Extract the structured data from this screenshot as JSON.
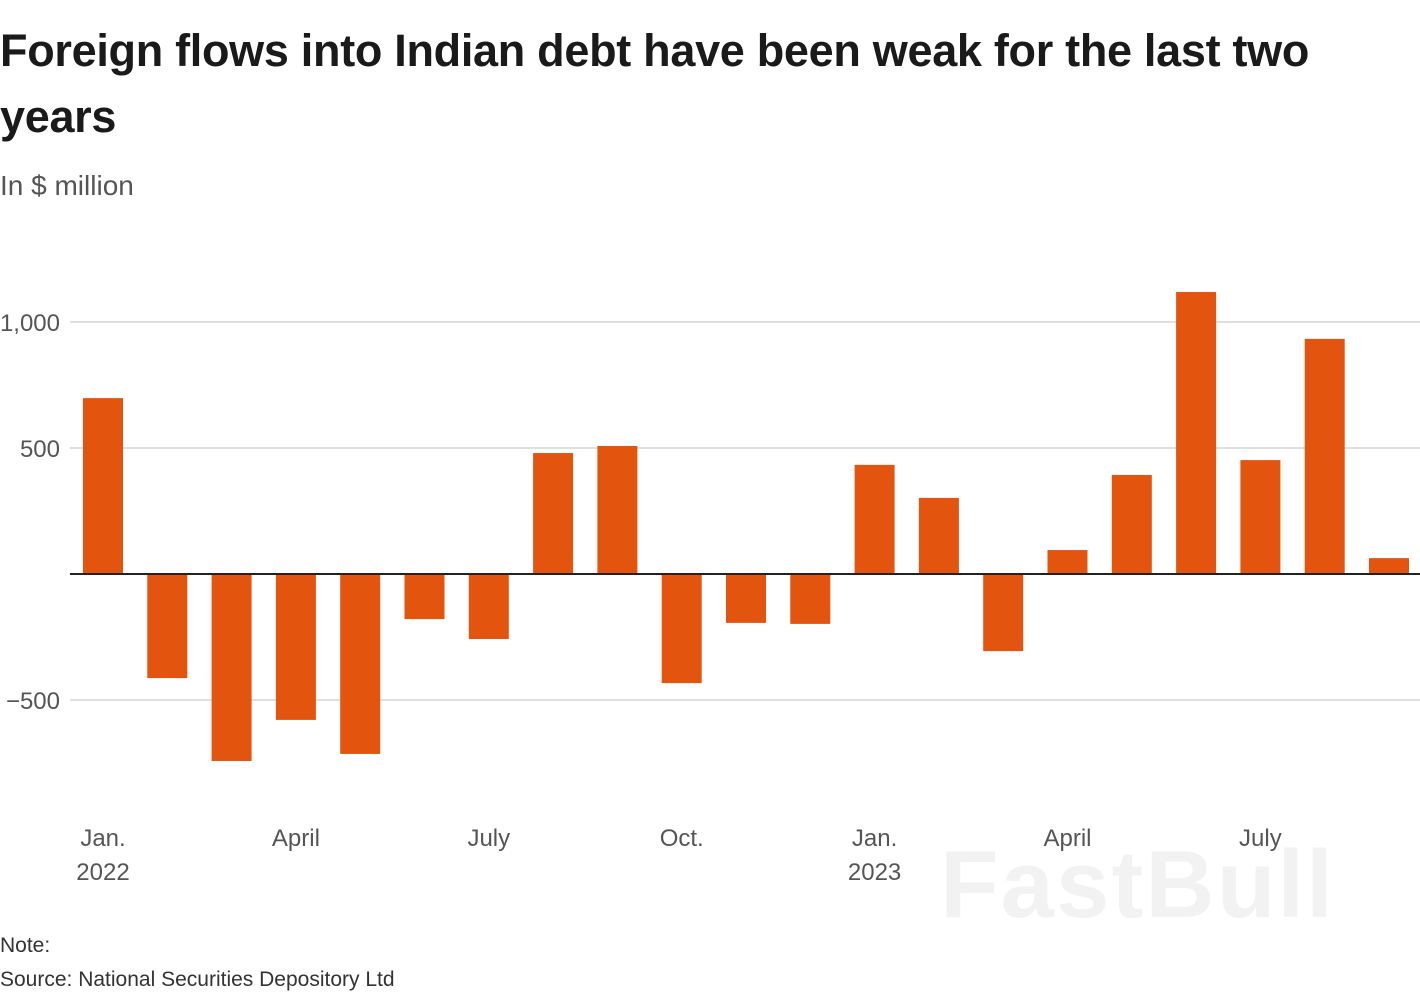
{
  "title": "Foreign flows into Indian debt have been weak for the last two years",
  "subtitle": "In $ million",
  "note": "Note:",
  "source": "Source: National Securities Depository Ltd",
  "watermark": "FastBull",
  "colors": {
    "bar": "#e3540f",
    "grid": "#cccccc",
    "axis": "#222222"
  },
  "chart_data": {
    "type": "bar",
    "title": "Foreign flows into Indian debt have been weak for the last two years",
    "ylabel": "In $ million",
    "categories": [
      "2022-01",
      "2022-02",
      "2022-03",
      "2022-04",
      "2022-05",
      "2022-06",
      "2022-07",
      "2022-08",
      "2022-09",
      "2022-10",
      "2022-11",
      "2022-12",
      "2023-01",
      "2023-02",
      "2023-03",
      "2023-04",
      "2023-05",
      "2023-06",
      "2023-07",
      "2023-08",
      "2023-09"
    ],
    "values": [
      698,
      -413,
      -742,
      -579,
      -714,
      -179,
      -258,
      480,
      508,
      -433,
      -194,
      -198,
      433,
      302,
      -306,
      95,
      393,
      1119,
      452,
      933,
      63
    ],
    "ylim": [
      -850,
      1150
    ],
    "yticks": [
      {
        "value": 1000,
        "label": "1,000"
      },
      {
        "value": 500,
        "label": "500"
      },
      {
        "value": -500,
        "label": "−500"
      }
    ],
    "xticks": [
      {
        "index": 0,
        "label": "Jan.",
        "sublabel": "2022"
      },
      {
        "index": 3,
        "label": "April",
        "sublabel": ""
      },
      {
        "index": 6,
        "label": "July",
        "sublabel": ""
      },
      {
        "index": 9,
        "label": "Oct.",
        "sublabel": ""
      },
      {
        "index": 12,
        "label": "Jan.",
        "sublabel": "2023"
      },
      {
        "index": 15,
        "label": "April",
        "sublabel": ""
      },
      {
        "index": 18,
        "label": "July",
        "sublabel": ""
      }
    ],
    "grid": true,
    "legend": "none"
  }
}
